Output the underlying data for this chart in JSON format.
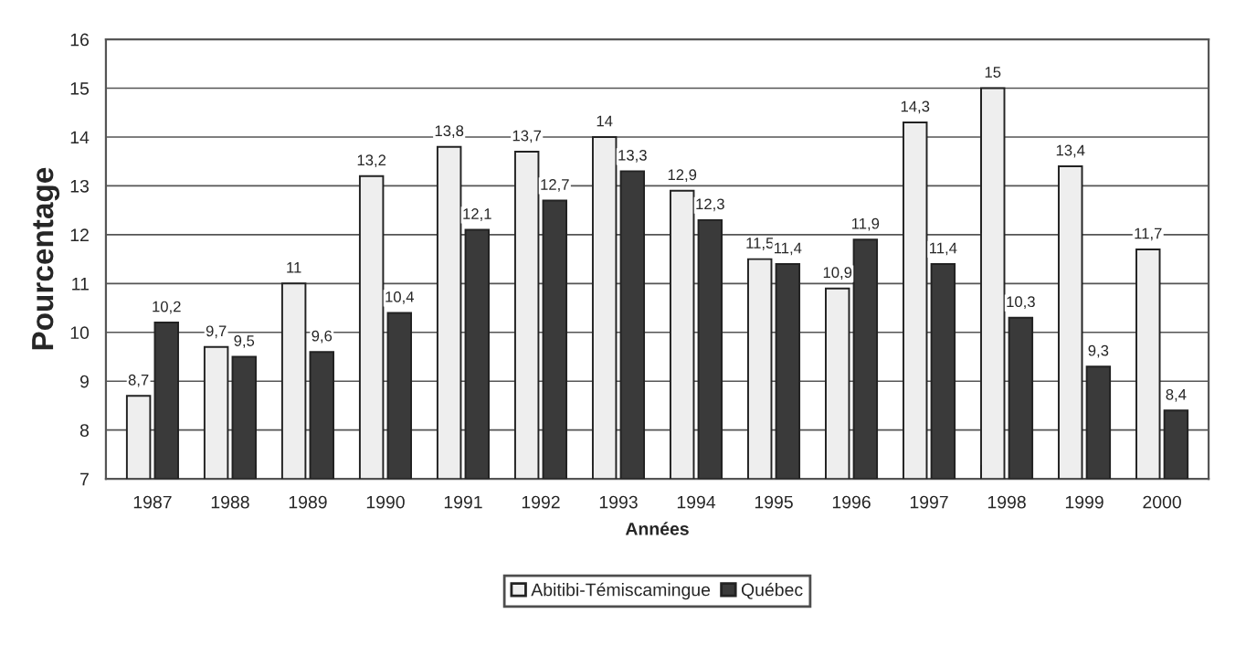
{
  "chart_data": {
    "type": "bar",
    "xlabel": "Années",
    "ylabel": "Pourcentage",
    "categories": [
      "1987",
      "1988",
      "1989",
      "1990",
      "1991",
      "1992",
      "1993",
      "1994",
      "1995",
      "1996",
      "1997",
      "1998",
      "1999",
      "2000"
    ],
    "series": [
      {
        "name": "Abitibi-Témiscamingue",
        "color": "#eeeeee",
        "values": [
          8.7,
          9.7,
          11,
          13.2,
          13.8,
          13.7,
          14,
          12.9,
          11.5,
          10.9,
          14.3,
          15,
          13.4,
          11.7
        ],
        "value_labels": [
          "8,7",
          "9,7",
          "11",
          "13,2",
          "13,8",
          "13,7",
          "14",
          "12,9",
          "11,5",
          "10,9",
          "14,3",
          "15",
          "13,4",
          "11,7"
        ]
      },
      {
        "name": "Québec",
        "color": "#3a3a3a",
        "values": [
          10.2,
          9.5,
          9.6,
          10.4,
          12.1,
          12.7,
          13.3,
          12.3,
          11.4,
          11.9,
          11.4,
          10.3,
          9.3,
          8.4
        ],
        "value_labels": [
          "10,2",
          "9,5",
          "9,6",
          "10,4",
          "12,1",
          "12,7",
          "13,3",
          "12,3",
          "11,4",
          "11,9",
          "11,4",
          "10,3",
          "9,3",
          "8,4"
        ]
      }
    ],
    "ylim": [
      7,
      16
    ],
    "yticks": [
      7,
      8,
      9,
      10,
      11,
      12,
      13,
      14,
      15,
      16
    ],
    "grid": "y",
    "legend": "bottom"
  }
}
